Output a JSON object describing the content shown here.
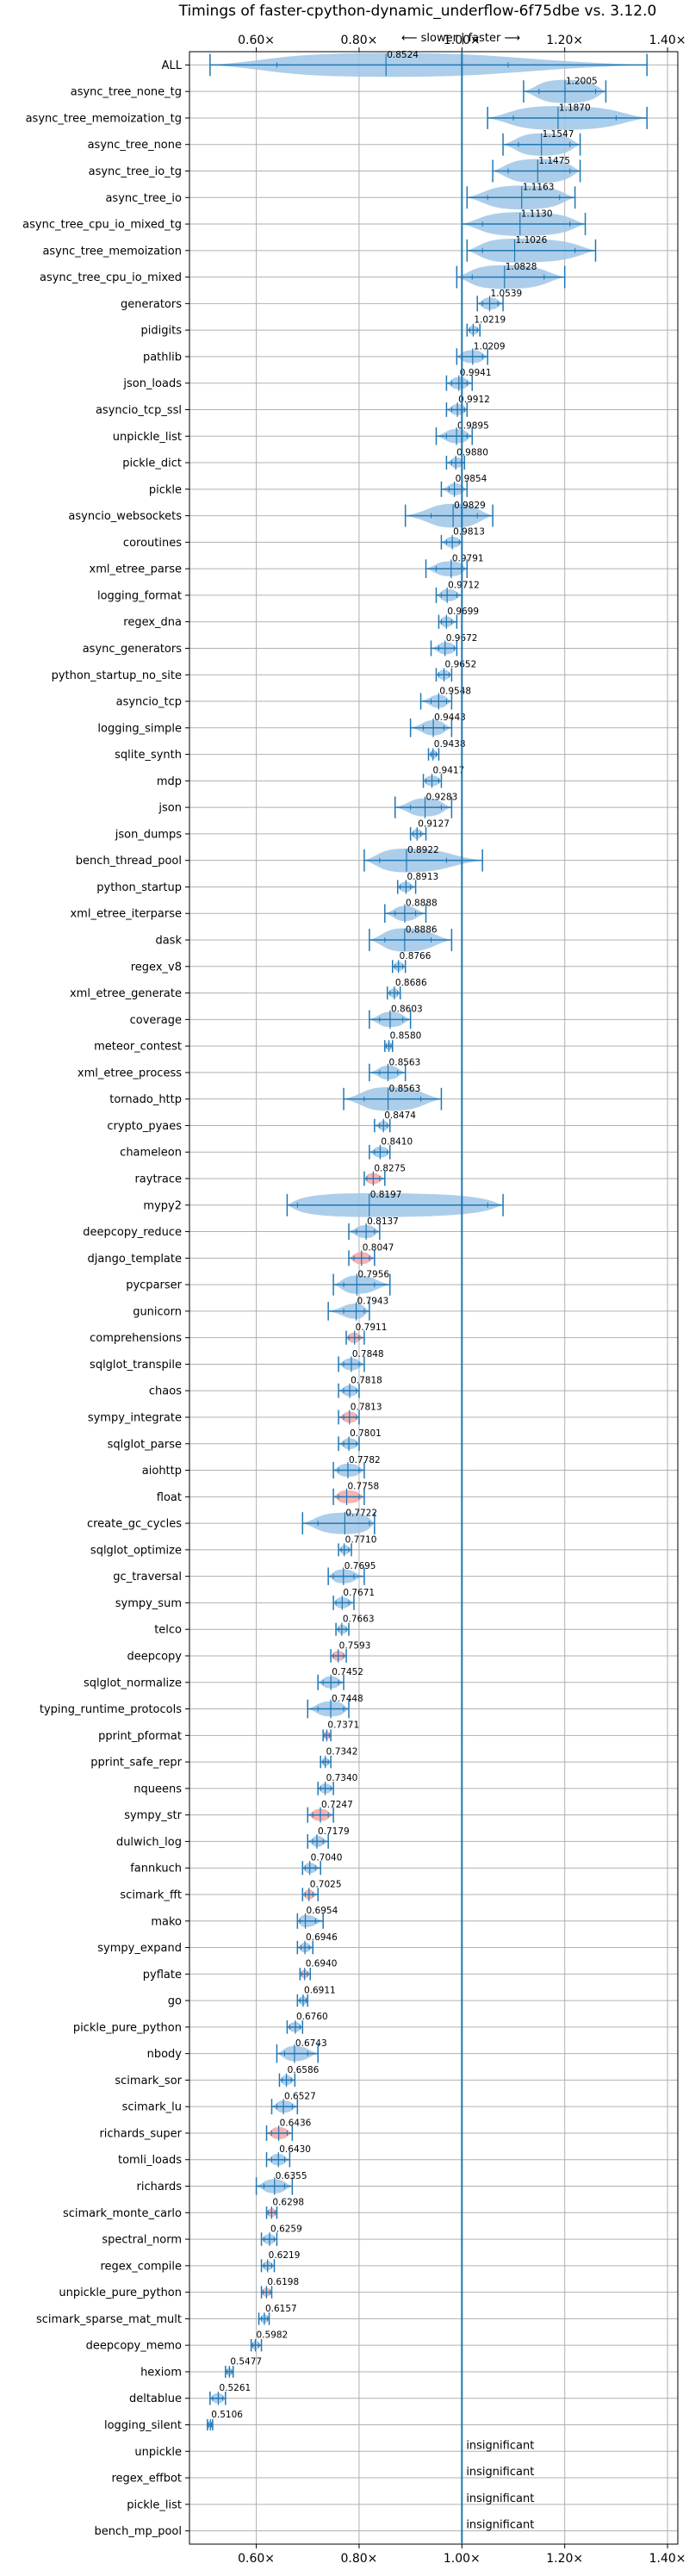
{
  "chart_data": {
    "type": "violin",
    "title": "Timings of faster-cpython-dynamic_underflow-6f75dbe vs. 3.12.0",
    "direction_label": "⟵ slower | faster ⟶",
    "xlim": [
      0.47,
      1.42
    ],
    "ticks": [
      0.6,
      0.8,
      1.0,
      1.2,
      1.4
    ],
    "tick_labels": [
      "0.60×",
      "0.80×",
      "1.00×",
      "1.20×",
      "1.40×"
    ],
    "reference": 1.0,
    "colors": {
      "violin": "#9fc5e6",
      "line": "#1f77b4",
      "slow": "#f4a6a6"
    },
    "insignificant_label": "insignificant",
    "benchmarks": [
      {
        "name": "ALL",
        "value": 0.8524,
        "min": 0.51,
        "max": 1.36,
        "p1": 0.64,
        "p2": 1.09
      },
      {
        "name": "async_tree_none_tg",
        "value": 1.2005,
        "min": 1.12,
        "max": 1.28,
        "p1": 1.15,
        "p2": 1.26
      },
      {
        "name": "async_tree_memoization_tg",
        "value": 1.187,
        "min": 1.05,
        "max": 1.36,
        "p1": 1.1,
        "p2": 1.3
      },
      {
        "name": "async_tree_none",
        "value": 1.1547,
        "min": 1.08,
        "max": 1.23,
        "p1": 1.11,
        "p2": 1.21
      },
      {
        "name": "async_tree_io_tg",
        "value": 1.1475,
        "min": 1.06,
        "max": 1.23,
        "p1": 1.09,
        "p2": 1.21
      },
      {
        "name": "async_tree_io",
        "value": 1.1163,
        "min": 1.01,
        "max": 1.22,
        "p1": 1.05,
        "p2": 1.19
      },
      {
        "name": "async_tree_cpu_io_mixed_tg",
        "value": 1.113,
        "min": 1.0,
        "max": 1.24,
        "p1": 1.04,
        "p2": 1.21
      },
      {
        "name": "async_tree_memoization",
        "value": 1.1026,
        "min": 1.01,
        "max": 1.26,
        "p1": 1.04,
        "p2": 1.22
      },
      {
        "name": "async_tree_cpu_io_mixed",
        "value": 1.0828,
        "min": 0.99,
        "max": 1.2,
        "p1": 1.02,
        "p2": 1.16
      },
      {
        "name": "generators",
        "value": 1.0539,
        "min": 1.03,
        "max": 1.08,
        "p1": 1.04,
        "p2": 1.07
      },
      {
        "name": "pidigits",
        "value": 1.0219,
        "min": 1.01,
        "max": 1.035,
        "p1": 1.015,
        "p2": 1.03
      },
      {
        "name": "pathlib",
        "value": 1.0209,
        "min": 0.99,
        "max": 1.05,
        "p1": 1.0,
        "p2": 1.04
      },
      {
        "name": "json_loads",
        "value": 0.9941,
        "min": 0.97,
        "max": 1.02,
        "p1": 0.98,
        "p2": 1.01
      },
      {
        "name": "asyncio_tcp_ssl",
        "value": 0.9912,
        "min": 0.97,
        "max": 1.01,
        "p1": 0.98,
        "p2": 1.005
      },
      {
        "name": "unpickle_list",
        "value": 0.9895,
        "min": 0.95,
        "max": 1.02,
        "p1": 0.97,
        "p2": 1.01
      },
      {
        "name": "pickle_dict",
        "value": 0.988,
        "min": 0.97,
        "max": 1.005,
        "p1": 0.98,
        "p2": 1.0
      },
      {
        "name": "pickle",
        "value": 0.9854,
        "min": 0.96,
        "max": 1.01,
        "p1": 0.975,
        "p2": 1.0
      },
      {
        "name": "asyncio_websockets",
        "value": 0.9829,
        "min": 0.89,
        "max": 1.06,
        "p1": 0.94,
        "p2": 1.03
      },
      {
        "name": "coroutines",
        "value": 0.9813,
        "min": 0.96,
        "max": 1.0,
        "p1": 0.97,
        "p2": 0.995
      },
      {
        "name": "xml_etree_parse",
        "value": 0.9791,
        "min": 0.93,
        "max": 1.01,
        "p1": 0.95,
        "p2": 1.0
      },
      {
        "name": "logging_format",
        "value": 0.9712,
        "min": 0.95,
        "max": 1.0,
        "p1": 0.96,
        "p2": 0.99
      },
      {
        "name": "regex_dna",
        "value": 0.9699,
        "min": 0.955,
        "max": 0.99,
        "p1": 0.96,
        "p2": 0.98
      },
      {
        "name": "async_generators",
        "value": 0.9672,
        "min": 0.94,
        "max": 0.99,
        "p1": 0.955,
        "p2": 0.985
      },
      {
        "name": "python_startup_no_site",
        "value": 0.9652,
        "min": 0.95,
        "max": 0.98,
        "p1": 0.955,
        "p2": 0.975
      },
      {
        "name": "asyncio_tcp",
        "value": 0.9548,
        "min": 0.92,
        "max": 0.98,
        "p1": 0.94,
        "p2": 0.97
      },
      {
        "name": "logging_simple",
        "value": 0.9443,
        "min": 0.9,
        "max": 0.98,
        "p1": 0.925,
        "p2": 0.965
      },
      {
        "name": "sqlite_synth",
        "value": 0.9438,
        "min": 0.935,
        "max": 0.955,
        "p1": 0.94,
        "p2": 0.95
      },
      {
        "name": "mdp",
        "value": 0.9417,
        "min": 0.925,
        "max": 0.96,
        "p1": 0.93,
        "p2": 0.955
      },
      {
        "name": "json",
        "value": 0.9283,
        "min": 0.87,
        "max": 0.98,
        "p1": 0.9,
        "p2": 0.96
      },
      {
        "name": "json_dumps",
        "value": 0.9127,
        "min": 0.9,
        "max": 0.93,
        "p1": 0.905,
        "p2": 0.92
      },
      {
        "name": "bench_thread_pool",
        "value": 0.8922,
        "min": 0.81,
        "max": 1.04,
        "p1": 0.84,
        "p2": 0.97
      },
      {
        "name": "python_startup",
        "value": 0.8913,
        "min": 0.875,
        "max": 0.91,
        "p1": 0.88,
        "p2": 0.9
      },
      {
        "name": "xml_etree_iterparse",
        "value": 0.8888,
        "min": 0.85,
        "max": 0.93,
        "p1": 0.87,
        "p2": 0.91
      },
      {
        "name": "dask",
        "value": 0.8886,
        "min": 0.82,
        "max": 0.98,
        "p1": 0.85,
        "p2": 0.94
      },
      {
        "name": "regex_v8",
        "value": 0.8766,
        "min": 0.865,
        "max": 0.89,
        "p1": 0.87,
        "p2": 0.885
      },
      {
        "name": "xml_etree_generate",
        "value": 0.8686,
        "min": 0.855,
        "max": 0.88,
        "p1": 0.86,
        "p2": 0.875
      },
      {
        "name": "coverage",
        "value": 0.8603,
        "min": 0.82,
        "max": 0.9,
        "p1": 0.84,
        "p2": 0.885
      },
      {
        "name": "meteor_contest",
        "value": 0.858,
        "min": 0.85,
        "max": 0.865,
        "p1": 0.853,
        "p2": 0.862
      },
      {
        "name": "xml_etree_process",
        "value": 0.8563,
        "min": 0.82,
        "max": 0.89,
        "p1": 0.84,
        "p2": 0.875
      },
      {
        "name": "tornado_http",
        "value": 0.8563,
        "min": 0.77,
        "max": 0.96,
        "p1": 0.81,
        "p2": 0.92
      },
      {
        "name": "crypto_pyaes",
        "value": 0.8474,
        "min": 0.83,
        "max": 0.86,
        "p1": 0.84,
        "p2": 0.855
      },
      {
        "name": "chameleon",
        "value": 0.841,
        "min": 0.82,
        "max": 0.86,
        "p1": 0.83,
        "p2": 0.855
      },
      {
        "name": "raytrace",
        "value": 0.8275,
        "min": 0.81,
        "max": 0.85,
        "p1": 0.815,
        "p2": 0.84
      },
      {
        "name": "mypy2",
        "value": 0.8197,
        "min": 0.66,
        "max": 1.08,
        "p1": 0.68,
        "p2": 1.05
      },
      {
        "name": "deepcopy_reduce",
        "value": 0.8137,
        "min": 0.78,
        "max": 0.84,
        "p1": 0.795,
        "p2": 0.83
      },
      {
        "name": "django_template",
        "value": 0.8047,
        "min": 0.78,
        "max": 0.83,
        "p1": 0.79,
        "p2": 0.82
      },
      {
        "name": "pycparser",
        "value": 0.7956,
        "min": 0.75,
        "max": 0.86,
        "p1": 0.77,
        "p2": 0.83
      },
      {
        "name": "gunicorn",
        "value": 0.7943,
        "min": 0.74,
        "max": 0.82,
        "p1": 0.77,
        "p2": 0.81
      },
      {
        "name": "comprehensions",
        "value": 0.7911,
        "min": 0.775,
        "max": 0.81,
        "p1": 0.78,
        "p2": 0.8
      },
      {
        "name": "sqlglot_transpile",
        "value": 0.7848,
        "min": 0.76,
        "max": 0.81,
        "p1": 0.77,
        "p2": 0.8
      },
      {
        "name": "chaos",
        "value": 0.7818,
        "min": 0.76,
        "max": 0.8,
        "p1": 0.77,
        "p2": 0.795
      },
      {
        "name": "sympy_integrate",
        "value": 0.7813,
        "min": 0.76,
        "max": 0.8,
        "p1": 0.77,
        "p2": 0.795
      },
      {
        "name": "sqlglot_parse",
        "value": 0.7801,
        "min": 0.76,
        "max": 0.8,
        "p1": 0.77,
        "p2": 0.795
      },
      {
        "name": "aiohttp",
        "value": 0.7782,
        "min": 0.75,
        "max": 0.81,
        "p1": 0.76,
        "p2": 0.8
      },
      {
        "name": "float",
        "value": 0.7758,
        "min": 0.75,
        "max": 0.81,
        "p1": 0.76,
        "p2": 0.8
      },
      {
        "name": "create_gc_cycles",
        "value": 0.7722,
        "min": 0.69,
        "max": 0.83,
        "p1": 0.72,
        "p2": 0.82
      },
      {
        "name": "sqlglot_optimize",
        "value": 0.771,
        "min": 0.76,
        "max": 0.785,
        "p1": 0.765,
        "p2": 0.78
      },
      {
        "name": "gc_traversal",
        "value": 0.7695,
        "min": 0.74,
        "max": 0.81,
        "p1": 0.75,
        "p2": 0.79
      },
      {
        "name": "sympy_sum",
        "value": 0.7671,
        "min": 0.75,
        "max": 0.79,
        "p1": 0.755,
        "p2": 0.78
      },
      {
        "name": "telco",
        "value": 0.7663,
        "min": 0.755,
        "max": 0.78,
        "p1": 0.76,
        "p2": 0.775
      },
      {
        "name": "deepcopy",
        "value": 0.7593,
        "min": 0.745,
        "max": 0.775,
        "p1": 0.75,
        "p2": 0.77
      },
      {
        "name": "sqlglot_normalize",
        "value": 0.7452,
        "min": 0.72,
        "max": 0.77,
        "p1": 0.73,
        "p2": 0.76
      },
      {
        "name": "typing_runtime_protocols",
        "value": 0.7448,
        "min": 0.7,
        "max": 0.78,
        "p1": 0.72,
        "p2": 0.77
      },
      {
        "name": "pprint_pformat",
        "value": 0.7371,
        "min": 0.73,
        "max": 0.745,
        "p1": 0.733,
        "p2": 0.742
      },
      {
        "name": "pprint_safe_repr",
        "value": 0.7342,
        "min": 0.725,
        "max": 0.745,
        "p1": 0.73,
        "p2": 0.74
      },
      {
        "name": "nqueens",
        "value": 0.734,
        "min": 0.72,
        "max": 0.75,
        "p1": 0.725,
        "p2": 0.745
      },
      {
        "name": "sympy_str",
        "value": 0.7247,
        "min": 0.7,
        "max": 0.75,
        "p1": 0.71,
        "p2": 0.74
      },
      {
        "name": "dulwich_log",
        "value": 0.7179,
        "min": 0.7,
        "max": 0.74,
        "p1": 0.71,
        "p2": 0.73
      },
      {
        "name": "fannkuch",
        "value": 0.704,
        "min": 0.69,
        "max": 0.725,
        "p1": 0.695,
        "p2": 0.715
      },
      {
        "name": "scimark_fft",
        "value": 0.7025,
        "min": 0.69,
        "max": 0.72,
        "p1": 0.695,
        "p2": 0.71
      },
      {
        "name": "mako",
        "value": 0.6954,
        "min": 0.68,
        "max": 0.73,
        "p1": 0.685,
        "p2": 0.715
      },
      {
        "name": "sympy_expand",
        "value": 0.6946,
        "min": 0.68,
        "max": 0.71,
        "p1": 0.687,
        "p2": 0.703
      },
      {
        "name": "pyflate",
        "value": 0.694,
        "min": 0.685,
        "max": 0.705,
        "p1": 0.688,
        "p2": 0.7
      },
      {
        "name": "go",
        "value": 0.6911,
        "min": 0.68,
        "max": 0.7,
        "p1": 0.685,
        "p2": 0.697
      },
      {
        "name": "pickle_pure_python",
        "value": 0.676,
        "min": 0.66,
        "max": 0.69,
        "p1": 0.665,
        "p2": 0.685
      },
      {
        "name": "nbody",
        "value": 0.6743,
        "min": 0.64,
        "max": 0.72,
        "p1": 0.655,
        "p2": 0.7
      },
      {
        "name": "scimark_sor",
        "value": 0.6586,
        "min": 0.645,
        "max": 0.675,
        "p1": 0.65,
        "p2": 0.668
      },
      {
        "name": "scimark_lu",
        "value": 0.6527,
        "min": 0.63,
        "max": 0.68,
        "p1": 0.64,
        "p2": 0.67
      },
      {
        "name": "richards_super",
        "value": 0.6436,
        "min": 0.62,
        "max": 0.67,
        "p1": 0.63,
        "p2": 0.66
      },
      {
        "name": "tomli_loads",
        "value": 0.643,
        "min": 0.62,
        "max": 0.665,
        "p1": 0.63,
        "p2": 0.655
      },
      {
        "name": "richards",
        "value": 0.6355,
        "min": 0.6,
        "max": 0.67,
        "p1": 0.615,
        "p2": 0.655
      },
      {
        "name": "scimark_monte_carlo",
        "value": 0.6298,
        "min": 0.62,
        "max": 0.64,
        "p1": 0.623,
        "p2": 0.637
      },
      {
        "name": "spectral_norm",
        "value": 0.6259,
        "min": 0.61,
        "max": 0.64,
        "p1": 0.615,
        "p2": 0.635
      },
      {
        "name": "regex_compile",
        "value": 0.6219,
        "min": 0.61,
        "max": 0.635,
        "p1": 0.615,
        "p2": 0.63
      },
      {
        "name": "unpickle_pure_python",
        "value": 0.6198,
        "min": 0.61,
        "max": 0.63,
        "p1": 0.613,
        "p2": 0.627
      },
      {
        "name": "scimark_sparse_mat_mult",
        "value": 0.6157,
        "min": 0.605,
        "max": 0.625,
        "p1": 0.61,
        "p2": 0.622
      },
      {
        "name": "deepcopy_memo",
        "value": 0.5982,
        "min": 0.59,
        "max": 0.61,
        "p1": 0.593,
        "p2": 0.605
      },
      {
        "name": "hexiom",
        "value": 0.5477,
        "min": 0.54,
        "max": 0.555,
        "p1": 0.543,
        "p2": 0.552
      },
      {
        "name": "deltablue",
        "value": 0.5261,
        "min": 0.51,
        "max": 0.54,
        "p1": 0.515,
        "p2": 0.535
      },
      {
        "name": "logging_silent",
        "value": 0.5106,
        "min": 0.505,
        "max": 0.515,
        "p1": 0.507,
        "p2": 0.513
      },
      {
        "name": "unpickle",
        "insignificant": true
      },
      {
        "name": "regex_effbot",
        "insignificant": true
      },
      {
        "name": "pickle_list",
        "insignificant": true
      },
      {
        "name": "bench_mp_pool",
        "insignificant": true
      }
    ]
  }
}
